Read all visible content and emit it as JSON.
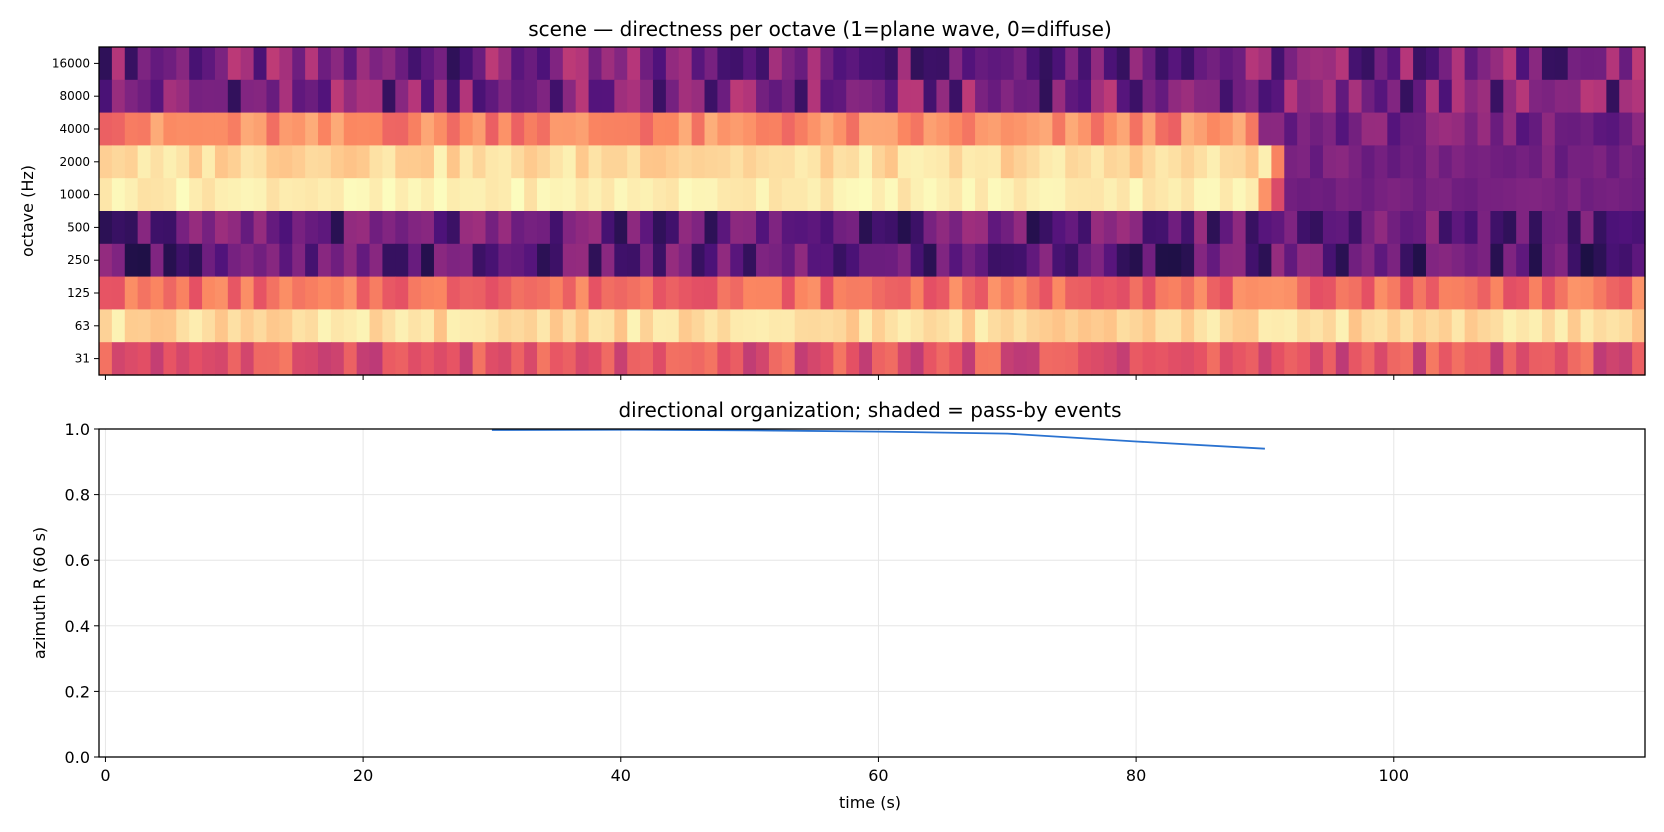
{
  "chart_data": [
    {
      "type": "heatmap",
      "title": "scene — directness per octave (1=plane wave, 0=diffuse)",
      "xlabel": "",
      "ylabel": "octave (Hz)",
      "y_categories": [
        "16000",
        "8000",
        "4000",
        "2000",
        "1000",
        "500",
        "250",
        "125",
        "63",
        "31"
      ],
      "x_range": [
        0,
        120
      ],
      "n_columns": 120,
      "colormap": "magma (upper range)",
      "value_range": [
        0,
        1
      ],
      "band_pattern": [
        {
          "octave": "16000",
          "segments": [
            {
              "x_end": 120,
              "level": 0.35
            }
          ]
        },
        {
          "octave": "8000",
          "segments": [
            {
              "x_end": 120,
              "level": 0.35
            }
          ]
        },
        {
          "octave": "4000",
          "segments": [
            {
              "x_end": 90,
              "level": 0.75
            },
            {
              "x_end": 120,
              "level": 0.35
            }
          ]
        },
        {
          "octave": "2000",
          "segments": [
            {
              "x_end": 91,
              "level": 0.93
            },
            {
              "x_end": 92,
              "level": 0.75
            },
            {
              "x_end": 120,
              "level": 0.35
            }
          ]
        },
        {
          "octave": "1000",
          "segments": [
            {
              "x_end": 90,
              "level": 0.97
            },
            {
              "x_end": 91,
              "level": 0.75
            },
            {
              "x_end": 92,
              "level": 0.6
            },
            {
              "x_end": 120,
              "level": 0.35
            }
          ]
        },
        {
          "octave": "500",
          "segments": [
            {
              "x_end": 120,
              "level": 0.3
            }
          ]
        },
        {
          "octave": "250",
          "segments": [
            {
              "x_end": 120,
              "level": 0.28
            }
          ]
        },
        {
          "octave": "125",
          "segments": [
            {
              "x_end": 120,
              "level": 0.7
            }
          ]
        },
        {
          "octave": "63",
          "segments": [
            {
              "x_end": 120,
              "level": 0.93
            }
          ]
        },
        {
          "octave": "31",
          "segments": [
            {
              "x_end": 120,
              "level": 0.62
            }
          ]
        }
      ]
    },
    {
      "type": "line",
      "title": "directional organization; shaded = pass-by events",
      "xlabel": "time (s)",
      "ylabel": "azimuth R (60 s)",
      "xlim": [
        -0.5,
        119.5
      ],
      "ylim": [
        0,
        1
      ],
      "x_ticks": [
        0,
        20,
        40,
        60,
        80,
        100
      ],
      "y_ticks": [
        0.0,
        0.2,
        0.4,
        0.6,
        0.8,
        1.0
      ],
      "y_tick_labels": [
        "0.0",
        "0.2",
        "0.4",
        "0.6",
        "0.8",
        "1.0"
      ],
      "grid": true,
      "series": [
        {
          "color": "#2a72d0",
          "x": [
            30,
            40,
            50,
            60,
            70,
            80,
            90
          ],
          "y": [
            0.997,
            0.998,
            0.996,
            0.992,
            0.986,
            0.962,
            0.94
          ]
        }
      ]
    }
  ]
}
